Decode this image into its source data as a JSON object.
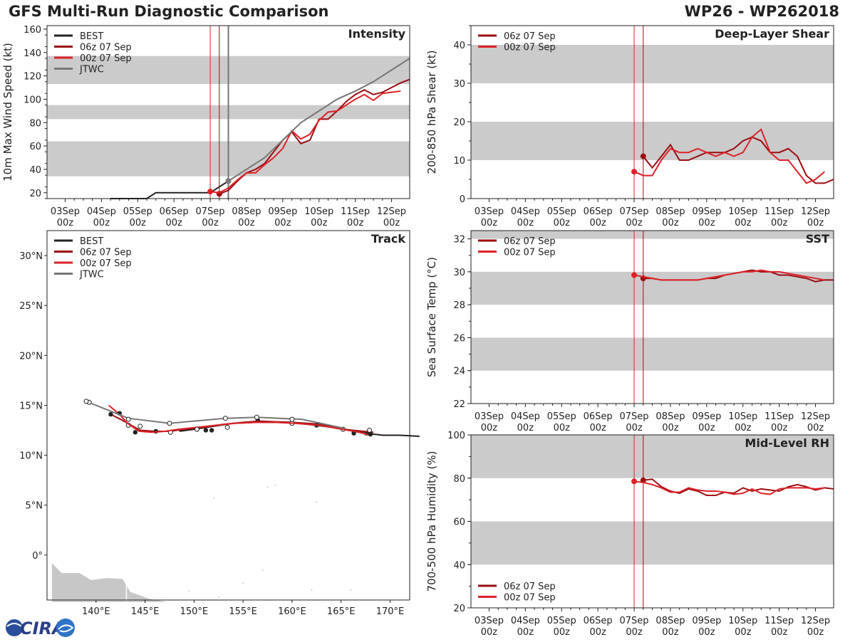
{
  "header": {
    "title": "GFS Multi-Run Diagnostic Comparison",
    "storm": "WP26 - WP262018"
  },
  "colors": {
    "best": "#222222",
    "run06": "#9b0d12",
    "run00": "#dd2228",
    "jtwc": "#777777",
    "band": "#cbcbcb"
  },
  "time_ticks": [
    {
      "day": "03Sep",
      "hour": "00z",
      "t": 0
    },
    {
      "day": "04Sep",
      "hour": "00z",
      "t": 24
    },
    {
      "day": "05Sep",
      "hour": "00z",
      "t": 48
    },
    {
      "day": "06Sep",
      "hour": "00z",
      "t": 72
    },
    {
      "day": "07Sep",
      "hour": "00z",
      "t": 96
    },
    {
      "day": "08Sep",
      "hour": "00z",
      "t": 120
    },
    {
      "day": "09Sep",
      "hour": "00z",
      "t": 144
    },
    {
      "day": "10Sep",
      "hour": "00z",
      "t": 168
    },
    {
      "day": "11Sep",
      "hour": "00z",
      "t": 192
    },
    {
      "day": "12Sep",
      "hour": "00z",
      "t": 216
    }
  ],
  "chart_data": [
    {
      "id": "intensity",
      "type": "line",
      "title": "Intensity",
      "ylabel": "10m Max Wind Speed (kt)",
      "xlabel": "",
      "xlim": [
        -12,
        228
      ],
      "ylim": [
        15,
        163
      ],
      "yticks": [
        20,
        40,
        60,
        80,
        100,
        120,
        140,
        160
      ],
      "minor": 10,
      "bands": [
        [
          34,
          64
        ],
        [
          83,
          95
        ],
        [
          113,
          137
        ]
      ],
      "vlines": [
        {
          "t": 96,
          "series": "00z"
        },
        {
          "t": 102,
          "series": "06z"
        },
        {
          "t": 108,
          "series": "JTWC"
        }
      ],
      "legend": [
        "BEST",
        "06z 07 Sep",
        "00z 07 Sep",
        "JTWC"
      ],
      "series": [
        {
          "name": "BEST",
          "key": "best",
          "t": [
            30,
            36,
            42,
            48,
            54,
            60,
            66,
            72,
            78,
            84,
            90,
            96,
            102,
            108
          ],
          "v": [
            15,
            15,
            15,
            15,
            15,
            20,
            20,
            20,
            20,
            20,
            20,
            20,
            25,
            30
          ]
        },
        {
          "name": "06z 07 Sep",
          "key": "run06",
          "t": [
            102,
            108,
            114,
            120,
            126,
            132,
            138,
            144,
            150,
            156,
            162,
            168,
            174,
            180,
            186,
            192,
            198,
            204,
            210,
            216,
            222,
            228
          ],
          "v": [
            19,
            22,
            30,
            37,
            40,
            45,
            55,
            65,
            72,
            62,
            65,
            83,
            83,
            90,
            98,
            104,
            108,
            104,
            106,
            110,
            114,
            117
          ]
        },
        {
          "name": "00z 07 Sep",
          "key": "run00",
          "t": [
            96,
            102,
            108,
            114,
            120,
            126,
            132,
            138,
            144,
            150,
            156,
            162,
            168,
            174,
            180,
            186,
            192,
            198,
            204,
            210,
            216,
            222
          ],
          "v": [
            21,
            20,
            24,
            31,
            37,
            37,
            44,
            50,
            58,
            73,
            66,
            70,
            82,
            89,
            90,
            95,
            100,
            104,
            99,
            105,
            106,
            107
          ]
        },
        {
          "name": "JTWC",
          "key": "jtwc",
          "t": [
            108,
            120,
            132,
            144,
            156,
            168,
            180,
            192,
            204,
            216,
            228
          ],
          "v": [
            30,
            40,
            50,
            65,
            80,
            90,
            100,
            107,
            115,
            125,
            135
          ]
        }
      ]
    },
    {
      "id": "shear",
      "type": "line",
      "title": "Deep-Layer Shear",
      "ylabel": "200-850 hPa Shear (kt)",
      "xlabel": "",
      "xlim": [
        -12,
        228
      ],
      "ylim": [
        0,
        45
      ],
      "yticks": [
        0,
        10,
        20,
        30,
        40
      ],
      "minor": 5,
      "bands": [
        [
          10,
          20
        ],
        [
          30,
          40
        ]
      ],
      "vlines": [
        {
          "t": 96,
          "series": "00z"
        },
        {
          "t": 102,
          "series": "06z"
        }
      ],
      "legend": [
        "06z 07 Sep",
        "00z 07 Sep"
      ],
      "series": [
        {
          "name": "06z 07 Sep",
          "key": "run06",
          "t": [
            102,
            108,
            114,
            120,
            126,
            132,
            138,
            144,
            150,
            156,
            162,
            168,
            174,
            180,
            186,
            192,
            198,
            204,
            210,
            216,
            222,
            228
          ],
          "v": [
            11,
            8,
            11,
            14,
            10,
            10,
            11,
            12,
            12,
            12,
            13,
            15,
            16,
            15,
            12,
            12,
            13,
            11,
            6,
            4,
            4,
            5
          ]
        },
        {
          "name": "00z 07 Sep",
          "key": "run00",
          "t": [
            96,
            102,
            108,
            114,
            120,
            126,
            132,
            138,
            144,
            150,
            156,
            162,
            168,
            174,
            180,
            186,
            192,
            198,
            204,
            210,
            216,
            222
          ],
          "v": [
            7,
            6,
            6,
            10,
            13,
            12,
            12,
            13,
            12,
            11,
            12,
            11,
            12,
            16,
            18,
            12,
            10,
            10,
            7,
            4,
            5,
            7
          ]
        }
      ]
    },
    {
      "id": "sst",
      "type": "line",
      "title": "SST",
      "ylabel": "Sea Surface Temp (°C)",
      "xlabel": "",
      "xlim": [
        -12,
        228
      ],
      "ylim": [
        22,
        32.5
      ],
      "yticks": [
        22,
        24,
        26,
        28,
        30,
        32
      ],
      "minor": 1,
      "bands": [
        [
          24,
          26
        ],
        [
          28,
          30
        ],
        [
          32,
          32.5
        ]
      ],
      "vlines": [
        {
          "t": 96,
          "series": "00z"
        },
        {
          "t": 102,
          "series": "06z"
        }
      ],
      "legend": [
        "06z 07 Sep",
        "00z 07 Sep"
      ],
      "series": [
        {
          "name": "06z 07 Sep",
          "key": "run06",
          "t": [
            102,
            108,
            114,
            120,
            126,
            132,
            138,
            144,
            150,
            156,
            162,
            168,
            174,
            180,
            186,
            192,
            198,
            204,
            210,
            216,
            222,
            228
          ],
          "v": [
            29.6,
            29.6,
            29.5,
            29.5,
            29.5,
            29.5,
            29.5,
            29.6,
            29.6,
            29.8,
            29.9,
            30.0,
            30.1,
            30.0,
            30.0,
            29.8,
            29.8,
            29.7,
            29.6,
            29.4,
            29.5,
            29.5
          ]
        },
        {
          "name": "00z 07 Sep",
          "key": "run00",
          "t": [
            96,
            102,
            108,
            114,
            120,
            126,
            132,
            138,
            144,
            150,
            156,
            162,
            168,
            174,
            180,
            186,
            192,
            198,
            204,
            210,
            216,
            222
          ],
          "v": [
            29.8,
            29.7,
            29.6,
            29.5,
            29.5,
            29.5,
            29.5,
            29.5,
            29.6,
            29.7,
            29.8,
            29.9,
            30.0,
            30.0,
            30.1,
            30.0,
            30.0,
            29.9,
            29.8,
            29.7,
            29.6,
            29.5
          ]
        }
      ]
    },
    {
      "id": "rh",
      "type": "line",
      "title": "Mid-Level RH",
      "ylabel": "700-500 hPa Humidity (%)",
      "xlabel": "",
      "xlim": [
        -12,
        228
      ],
      "ylim": [
        20,
        100
      ],
      "yticks": [
        20,
        40,
        60,
        80,
        100
      ],
      "minor": 10,
      "bands": [
        [
          40,
          60
        ],
        [
          80,
          100
        ]
      ],
      "vlines": [
        {
          "t": 96,
          "series": "00z"
        },
        {
          "t": 102,
          "series": "06z"
        }
      ],
      "legend": [
        "06z 07 Sep",
        "00z 07 Sep"
      ],
      "series": [
        {
          "name": "06z 07 Sep",
          "key": "run06",
          "t": [
            102,
            108,
            114,
            120,
            126,
            132,
            138,
            144,
            150,
            156,
            162,
            168,
            174,
            180,
            186,
            192,
            198,
            204,
            210,
            216,
            222,
            228
          ],
          "v": [
            79,
            79.5,
            76,
            74,
            73,
            75,
            74,
            72,
            72,
            73.5,
            73,
            75.5,
            74,
            75,
            74.5,
            74,
            76,
            77,
            76,
            74.5,
            75.5,
            75
          ]
        },
        {
          "name": "00z 07 Sep",
          "key": "run00",
          "t": [
            96,
            102,
            108,
            114,
            120,
            126,
            132,
            138,
            144,
            150,
            156,
            162,
            168,
            174,
            180,
            186,
            192,
            198,
            204,
            210,
            216,
            222
          ],
          "v": [
            78.5,
            78,
            77,
            75.5,
            73.5,
            73.5,
            75.5,
            74.5,
            74,
            74,
            73.5,
            72.5,
            73,
            75,
            73,
            72.5,
            75,
            75.5,
            75.5,
            75.5,
            75,
            75.5
          ]
        }
      ]
    },
    {
      "id": "track",
      "type": "line",
      "title": "Track",
      "ylabel": "",
      "xlabel": "",
      "xlim": [
        135,
        172
      ],
      "ylim": [
        -4.5,
        32.5
      ],
      "lonticks": [
        140,
        145,
        150,
        155,
        160,
        165,
        170
      ],
      "latticks": [
        0,
        5,
        10,
        15,
        20,
        25,
        30
      ],
      "legend": [
        "BEST",
        "06z 07 Sep",
        "00z 07 Sep",
        "JTWC"
      ],
      "series": [
        {
          "name": "BEST",
          "key": "best",
          "lon": [
            173,
            171,
            169.3,
            167.5,
            165.7,
            164,
            162.5,
            160.5,
            158.5,
            156.3,
            154,
            152,
            150,
            148.5
          ],
          "lat": [
            11.9,
            12.0,
            12.0,
            12.2,
            12.5,
            12.8,
            13.0,
            13.2,
            13.3,
            13.3,
            13.2,
            12.9,
            12.6,
            12.4
          ],
          "markers": [
            [
              167.6,
              12.2
            ],
            [
              162.7,
              13.1
            ],
            [
              156.5,
              13.5
            ],
            [
              151.8,
              12.5
            ]
          ]
        },
        {
          "name": "06z 07 Sep",
          "key": "run06",
          "lon": [
            168.3,
            166.2,
            165.3,
            163,
            160,
            157,
            156.5,
            155,
            153,
            151,
            149,
            147.5,
            146,
            144.5,
            142.5,
            141.7
          ],
          "lat": [
            12.3,
            12.5,
            12.6,
            13.1,
            13.3,
            13.4,
            13.4,
            13.3,
            13.1,
            12.8,
            12.6,
            12.4,
            12.4,
            12.5,
            13.6,
            14.0
          ],
          "markers": [
            [
              166.3,
              12.2
            ],
            [
              162.5,
              13.0
            ],
            [
              156.4,
              13.8
            ],
            [
              151.2,
              12.5
            ],
            [
              146.1,
              12.4
            ],
            [
              141.5,
              14.1
            ]
          ],
          "open": [
            [
              167.9,
              12.5
            ],
            [
              165.2,
              12.6
            ],
            [
              160,
              13.2
            ],
            [
              153.4,
              12.8
            ],
            [
              147.6,
              12.3
            ],
            [
              144.5,
              12.9
            ],
            [
              143.3,
              13.0
            ],
            [
              139.3,
              15.3
            ]
          ]
        },
        {
          "name": "00z 07 Sep",
          "key": "run00",
          "lon": [
            168,
            166.4,
            165.1,
            164,
            162.8,
            160.3,
            158.3,
            156.4,
            154.2,
            152.2,
            150.3,
            148.4,
            147.0,
            145.7,
            144.4,
            143.2,
            142.4,
            141.3
          ],
          "lat": [
            12.0,
            12.4,
            12.6,
            12.8,
            13.0,
            13.2,
            13.3,
            13.3,
            13.2,
            13.0,
            12.8,
            12.6,
            12.4,
            12.3,
            12.4,
            13.2,
            14.1,
            15.0
          ],
          "markers": [
            [
              168,
              12.1
            ],
            [
              144.0,
              12.3
            ],
            [
              142.4,
              14.2
            ]
          ],
          "open": [
            [
              150.3,
              12.6
            ]
          ]
        },
        {
          "name": "JTWC",
          "key": "jtwc",
          "lon": [
            165.3,
            161,
            156.4,
            153.2,
            147.5,
            143.3,
            139.5
          ],
          "lat": [
            12.7,
            13.6,
            13.8,
            13.7,
            13.2,
            13.7,
            15.2
          ],
          "open": [
            [
              160,
              13.6
            ],
            [
              156.4,
              13.8
            ],
            [
              153.2,
              13.7
            ],
            [
              147.5,
              13.2
            ],
            [
              143.3,
              13.6
            ],
            [
              139,
              15.4
            ]
          ]
        }
      ],
      "land": [
        [
          135.5,
          -0.8
        ],
        [
          136.5,
          -1.8
        ],
        [
          138.3,
          -1.8
        ],
        [
          139.5,
          -2.5
        ],
        [
          141.1,
          -2.3
        ],
        [
          142.7,
          -2.4
        ],
        [
          143.5,
          -3.7
        ],
        [
          145.5,
          -4.4
        ],
        [
          147.4,
          -4.7
        ],
        [
          135.5,
          -4.7
        ]
      ]
    }
  ],
  "logo": {
    "text": "CIRA"
  }
}
